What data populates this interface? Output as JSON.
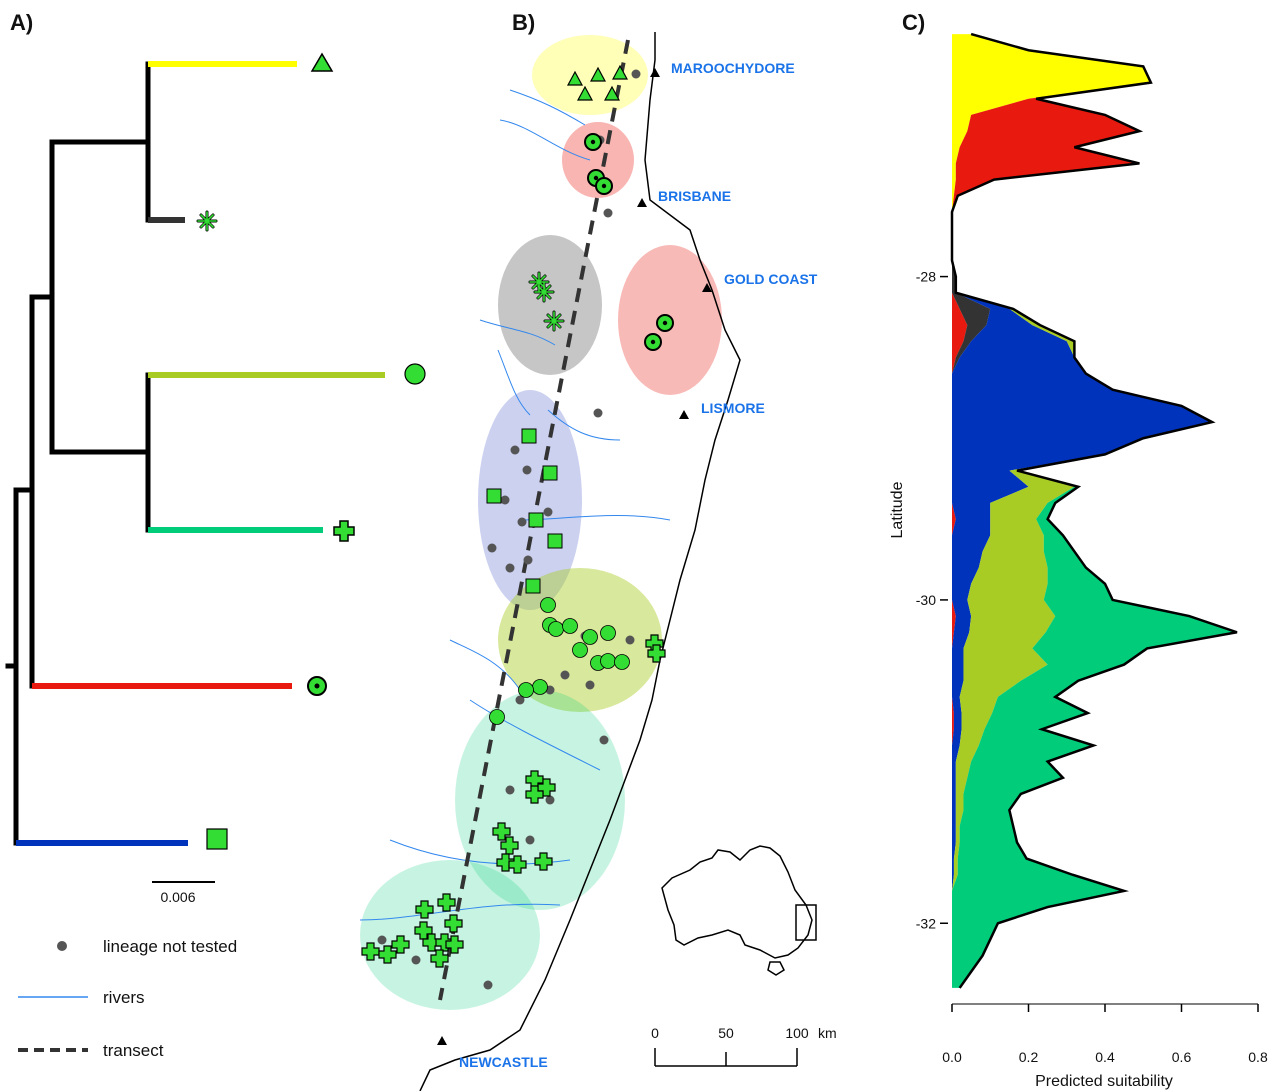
{
  "panels": {
    "a": "A)",
    "b": "B)",
    "c": "C)"
  },
  "colors": {
    "yellow": "#ffff00",
    "red": "#e8190f",
    "dark": "#333333",
    "olive": "#a8cc24",
    "teal": "#00cc7a",
    "blue": "#0033bb",
    "marker": "#33dd33",
    "river": "#3388ee",
    "city": "#1a73e8"
  },
  "tree": {
    "scale_label": "0.006",
    "tips": [
      {
        "name": "yellow",
        "marker": "triangle-icon"
      },
      {
        "name": "dark",
        "marker": "asterisk-icon"
      },
      {
        "name": "olive",
        "marker": "circle-icon"
      },
      {
        "name": "teal",
        "marker": "cross-icon"
      },
      {
        "name": "red",
        "marker": "dotted-circle-icon"
      },
      {
        "name": "blue",
        "marker": "square-icon"
      }
    ]
  },
  "legend": {
    "not_tested": "lineage not tested",
    "rivers": "rivers",
    "transect": "transect"
  },
  "map": {
    "cities": [
      "MAROOCHYDORE",
      "BRISBANE",
      "GOLD COAST",
      "LISMORE",
      "NEWCASTLE"
    ],
    "scale_ticks": [
      "0",
      "50",
      "100"
    ],
    "scale_unit": "km",
    "inset": "australia-inset-icon"
  },
  "chart_data": {
    "type": "area",
    "orientation": "vertical",
    "xlabel": "Predicted suitability",
    "ylabel": "Latitude",
    "xticks": [
      "0.0",
      "0.2",
      "0.4",
      "0.6",
      "0.8"
    ],
    "yticks": [
      "-28",
      "-30",
      "-32"
    ],
    "xlim": [
      0,
      0.8
    ],
    "ylim": [
      -32.45,
      -26.45
    ],
    "latitude": [
      -26.5,
      -26.6,
      -26.7,
      -26.8,
      -26.9,
      -27.0,
      -27.1,
      -27.2,
      -27.3,
      -27.4,
      -27.5,
      -27.6,
      -27.7,
      -27.8,
      -27.9,
      -28.0,
      -28.1,
      -28.2,
      -28.3,
      -28.4,
      -28.5,
      -28.6,
      -28.7,
      -28.8,
      -28.9,
      -29.0,
      -29.1,
      -29.2,
      -29.3,
      -29.4,
      -29.5,
      -29.6,
      -29.7,
      -29.8,
      -29.9,
      -30.0,
      -30.1,
      -30.2,
      -30.3,
      -30.4,
      -30.5,
      -30.6,
      -30.7,
      -30.8,
      -30.9,
      -31.0,
      -31.1,
      -31.2,
      -31.3,
      -31.4,
      -31.5,
      -31.6,
      -31.7,
      -31.8,
      -31.9,
      -32.0,
      -32.1,
      -32.2,
      -32.3,
      -32.4
    ],
    "series": [
      {
        "key": "yellow",
        "values": [
          0.05,
          0.2,
          0.5,
          0.52,
          0.2,
          0.05,
          0.04,
          0.02,
          0.01,
          0.01,
          0.005,
          0,
          0,
          0,
          0,
          0,
          0,
          0,
          0,
          0,
          0,
          0,
          0,
          0,
          0,
          0,
          0,
          0,
          0,
          0,
          0,
          0,
          0,
          0,
          0,
          0,
          0,
          0,
          0,
          0,
          0,
          0,
          0,
          0,
          0,
          0,
          0,
          0,
          0,
          0,
          0,
          0,
          0,
          0,
          0,
          0,
          0,
          0,
          0,
          0
        ]
      },
      {
        "key": "red",
        "values": [
          0,
          0,
          0,
          0,
          0.02,
          0.35,
          0.45,
          0.3,
          0.48,
          0.1,
          0.01,
          0,
          0,
          0,
          0,
          0,
          0,
          0.02,
          0.04,
          0.03,
          0.01,
          0,
          0,
          0,
          0,
          0,
          0,
          0,
          0,
          0,
          0.01,
          0,
          0,
          0,
          0,
          0,
          0.01,
          0.005,
          0,
          0,
          0,
          0,
          0.005,
          0.005,
          0,
          0,
          0,
          0,
          0,
          0,
          0,
          0,
          0,
          0,
          0,
          0,
          0,
          0,
          0,
          0
        ]
      },
      {
        "key": "dark",
        "values": [
          0,
          0,
          0,
          0,
          0,
          0,
          0,
          0,
          0,
          0,
          0,
          0,
          0,
          0,
          0,
          0.01,
          0.01,
          0.08,
          0.05,
          0.02,
          0.01,
          0,
          0,
          0,
          0,
          0,
          0,
          0,
          0,
          0,
          0,
          0,
          0,
          0,
          0,
          0,
          0,
          0,
          0,
          0,
          0,
          0,
          0,
          0,
          0,
          0,
          0,
          0,
          0,
          0,
          0,
          0,
          0,
          0,
          0,
          0,
          0,
          0,
          0,
          0
        ]
      },
      {
        "key": "blue",
        "values": [
          0,
          0,
          0,
          0,
          0,
          0,
          0,
          0,
          0,
          0,
          0,
          0,
          0,
          0,
          0,
          0,
          0,
          0.05,
          0.12,
          0.25,
          0.3,
          0.35,
          0.42,
          0.6,
          0.68,
          0.5,
          0.4,
          0.15,
          0.2,
          0.1,
          0.09,
          0.1,
          0.08,
          0.07,
          0.05,
          0.04,
          0.04,
          0.04,
          0.03,
          0.03,
          0.03,
          0.02,
          0.02,
          0.02,
          0.02,
          0.01,
          0.01,
          0.01,
          0.01,
          0.01,
          0.01,
          0.005,
          0.005,
          0,
          0,
          0,
          0,
          0,
          0,
          0
        ]
      },
      {
        "key": "olive",
        "values": [
          0,
          0,
          0,
          0,
          0,
          0,
          0,
          0,
          0,
          0,
          0,
          0,
          0,
          0,
          0,
          0,
          0,
          0.01,
          0.02,
          0.02,
          0,
          0,
          0,
          0,
          0,
          0,
          0,
          0.02,
          0.12,
          0.15,
          0.12,
          0.14,
          0.16,
          0.18,
          0.2,
          0.2,
          0.22,
          0.2,
          0.18,
          0.22,
          0.15,
          0.1,
          0.08,
          0.06,
          0.05,
          0.04,
          0.03,
          0.02,
          0.02,
          0.01,
          0.01,
          0.01,
          0.01,
          0,
          0,
          0,
          0,
          0,
          0,
          0
        ]
      },
      {
        "key": "teal",
        "values": [
          0,
          0,
          0,
          0,
          0,
          0,
          0,
          0,
          0,
          0,
          0,
          0,
          0,
          0,
          0,
          0,
          0,
          0,
          0,
          0,
          0,
          0,
          0,
          0,
          0,
          0,
          0,
          0,
          0.01,
          0.02,
          0.03,
          0.05,
          0.08,
          0.1,
          0.15,
          0.18,
          0.35,
          0.5,
          0.3,
          0.2,
          0.15,
          0.15,
          0.25,
          0.15,
          0.3,
          0.2,
          0.25,
          0.15,
          0.12,
          0.14,
          0.15,
          0.18,
          0.3,
          0.45,
          0.25,
          0.12,
          0.1,
          0.08,
          0.05,
          0.02
        ]
      }
    ]
  }
}
